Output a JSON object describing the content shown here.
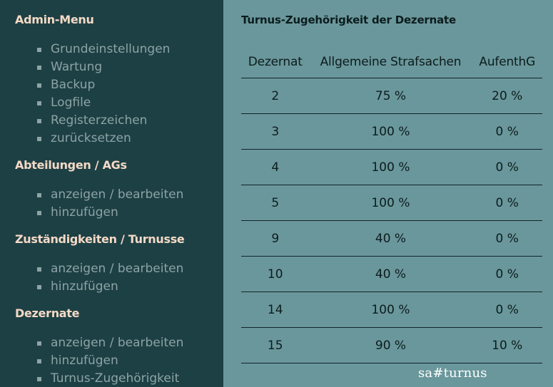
{
  "sidebar": {
    "sections": [
      {
        "title": "Admin-Menu",
        "items": [
          "Grundeinstellungen",
          "Wartung",
          "Backup",
          "Logfile",
          "Registerzeichen",
          "zurücksetzen"
        ]
      },
      {
        "title": "Abteilungen / AGs",
        "items": [
          "anzeigen / bearbeiten",
          "hinzufügen"
        ]
      },
      {
        "title": "Zuständigkeiten / Turnusse",
        "items": [
          "anzeigen / bearbeiten",
          "hinzufügen"
        ]
      },
      {
        "title": "Dezernate",
        "items": [
          "anzeigen / bearbeiten",
          "hinzufügen",
          "Turnus-Zugehörigkeit"
        ]
      }
    ]
  },
  "main": {
    "title": "Turnus-Zugehörigkeit der Dezernate",
    "table": {
      "headers": [
        "Dezernat",
        "Allgemeine Strafsachen",
        "AufenthG"
      ],
      "rows": [
        [
          "2",
          "75 %",
          "20 %"
        ],
        [
          "3",
          "100 %",
          "0 %"
        ],
        [
          "4",
          "100 %",
          "0 %"
        ],
        [
          "5",
          "100 %",
          "0 %"
        ],
        [
          "9",
          "40 %",
          "0 %"
        ],
        [
          "10",
          "40 %",
          "0 %"
        ],
        [
          "14",
          "100 %",
          "0 %"
        ],
        [
          "15",
          "90 %",
          "10 %"
        ]
      ]
    }
  },
  "footer": {
    "brand": "sa#turnus"
  },
  "colors": {
    "sidebar_bg": "#1d4044",
    "main_bg": "#6a979b",
    "section_title": "#f4d9c6",
    "menu_link": "#8da3a5"
  }
}
